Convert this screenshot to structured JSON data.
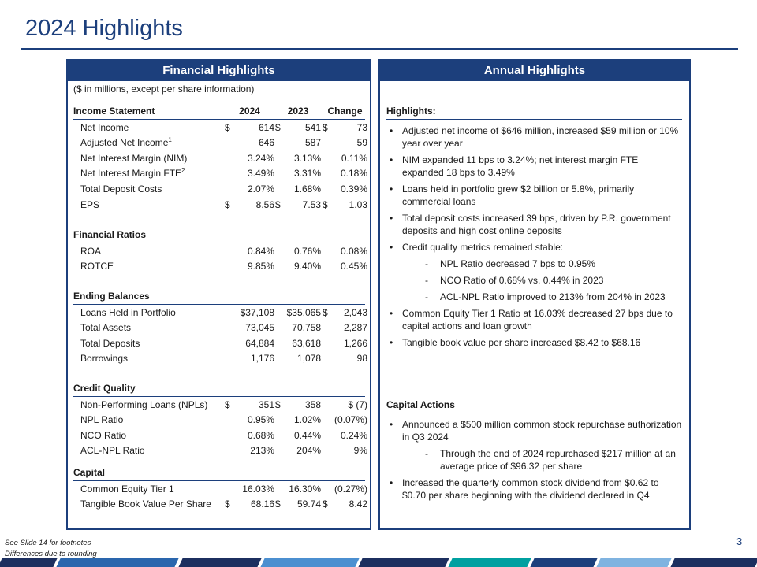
{
  "header": {
    "title": "2024 Highlights"
  },
  "financial": {
    "heading": "Financial Highlights",
    "note": "($ in millions, except per share information)",
    "sections": [
      {
        "title": "Income Statement",
        "columns": [
          "2024",
          "2023",
          "Change"
        ],
        "rows": [
          {
            "label": "Net Income",
            "cells": [
              [
                "$",
                "614"
              ],
              [
                "$",
                "541"
              ],
              [
                "$",
                "73"
              ]
            ]
          },
          {
            "label": "Adjusted Net Income",
            "footnote": "1",
            "cells": [
              "646",
              "587",
              "59"
            ]
          },
          {
            "label": "Net Interest Margin (NIM)",
            "cells": [
              "3.24%",
              "3.13%",
              "0.11%"
            ]
          },
          {
            "label": "Net Interest Margin FTE",
            "footnote": "2",
            "cells": [
              "3.49%",
              "3.31%",
              "0.18%"
            ]
          },
          {
            "label": "Total Deposit Costs",
            "cells": [
              "2.07%",
              "1.68%",
              "0.39%"
            ]
          },
          {
            "label": "EPS",
            "cells": [
              [
                "$",
                "8.56"
              ],
              [
                "$",
                "7.53"
              ],
              [
                "$",
                "1.03"
              ]
            ]
          }
        ]
      },
      {
        "title": "Financial Ratios",
        "rows": [
          {
            "label": "ROA",
            "cells": [
              "0.84%",
              "0.76%",
              "0.08%"
            ]
          },
          {
            "label": "ROTCE",
            "cells": [
              "9.85%",
              "9.40%",
              "0.45%"
            ]
          }
        ]
      },
      {
        "title": "Ending Balances",
        "rows": [
          {
            "label": "Loans Held in Portfolio",
            "cells": [
              "$37,108",
              "$35,065",
              [
                "$",
                "2,043"
              ]
            ]
          },
          {
            "label": "Total Assets",
            "cells": [
              "73,045",
              "70,758",
              "2,287"
            ]
          },
          {
            "label": "Total Deposits",
            "cells": [
              "64,884",
              "63,618",
              "1,266"
            ]
          },
          {
            "label": "Borrowings",
            "cells": [
              "1,176",
              "1,078",
              "98"
            ]
          }
        ]
      },
      {
        "title": "Credit Quality",
        "rows": [
          {
            "label": "Non-Performing Loans (NPLs)",
            "cells": [
              [
                "$",
                "351"
              ],
              [
                "$",
                "358"
              ],
              "$ (7)"
            ]
          },
          {
            "label": "NPL Ratio",
            "cells": [
              "0.95%",
              "1.02%",
              "(0.07%)"
            ]
          },
          {
            "label": "NCO Ratio",
            "cells": [
              "0.68%",
              "0.44%",
              "0.24%"
            ]
          },
          {
            "label": "ACL-NPL Ratio",
            "cells": [
              "213%",
              "204%",
              "9%"
            ]
          }
        ]
      },
      {
        "title": "Capital",
        "rows": [
          {
            "label": "Common Equity Tier 1",
            "cells": [
              "16.03%",
              "16.30%",
              "(0.27%)"
            ]
          },
          {
            "label": "Tangible Book Value Per Share",
            "cells": [
              [
                "$",
                "68.16"
              ],
              [
                "$",
                "59.74"
              ],
              [
                "$",
                "8.42"
              ]
            ]
          }
        ]
      }
    ]
  },
  "annual": {
    "heading": "Annual Highlights",
    "blocks": [
      {
        "title": "Highlights:",
        "items": [
          {
            "text": "Adjusted net income of $646 million, increased $59 million or 10% year over year"
          },
          {
            "text": "NIM expanded 11 bps to 3.24%; net interest margin FTE expanded 18 bps to 3.49%"
          },
          {
            "text": "Loans held in portfolio grew $2 billion or 5.8%, primarily commercial loans"
          },
          {
            "text": "Total deposit costs increased 39 bps, driven by P.R. government deposits and high cost online deposits"
          },
          {
            "text": "Credit quality metrics remained stable:",
            "subitems": [
              "NPL Ratio decreased 7 bps to 0.95%",
              "NCO Ratio of 0.68% vs. 0.44% in 2023",
              "ACL-NPL Ratio improved to 213% from 204% in 2023"
            ]
          },
          {
            "text": "Common Equity Tier 1 Ratio at 16.03% decreased 27 bps due to capital actions and loan growth"
          },
          {
            "text": "Tangible book value per share increased $8.42 to $68.16"
          }
        ]
      },
      {
        "title": "Capital Actions",
        "items": [
          {
            "text": "Announced a $500 million common stock repurchase authorization in Q3 2024",
            "subitems": [
              "Through the end of 2024 repurchased $217 million at an average price of $96.32 per share"
            ]
          },
          {
            "text": "Increased the quarterly common stock dividend from $0.62 to $0.70 per share beginning with the dividend declared in Q4"
          }
        ]
      }
    ]
  },
  "footer": {
    "notes": [
      "See Slide 14 for footnotes",
      "Differences due to rounding"
    ],
    "page": "3"
  }
}
